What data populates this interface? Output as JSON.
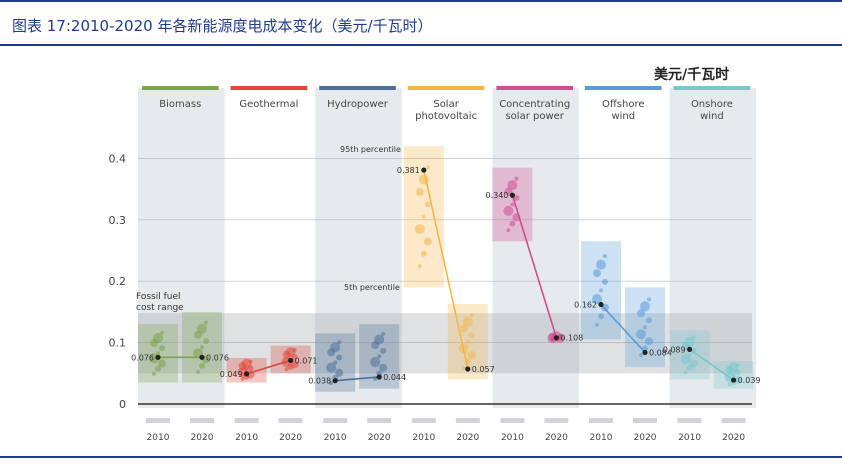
{
  "page_title": "图表 17:2010-2020 年各新能源度电成本变化（美元/千瓦时）",
  "chart_data": {
    "type": "scatter",
    "unit_label": "美元/千瓦时",
    "ylim": [
      0,
      0.4
    ],
    "yticks": [
      "0",
      "0.1",
      "0.2",
      "0.3",
      "0.4"
    ],
    "ytick_values": [
      0,
      0.1,
      0.2,
      0.3,
      0.4
    ],
    "grid": true,
    "annotations": {
      "fossil_label": [
        "Fossil fuel",
        "cost range"
      ],
      "fossil_range": [
        0.05,
        0.148
      ],
      "p95": "95th percentile",
      "p5": "5th percentile"
    },
    "categories": [
      {
        "name": [
          "Biomass"
        ],
        "color": "#7ba34c",
        "y2010": 0.076,
        "y2020": 0.076,
        "label2010": "0.076",
        "label2020": "0.076",
        "box2010": [
          0.035,
          0.13
        ],
        "box2020": [
          0.035,
          0.15
        ]
      },
      {
        "name": [
          "Geothermal"
        ],
        "color": "#e0473a",
        "y2010": 0.049,
        "y2020": 0.071,
        "label2010": "0.049",
        "label2020": "0.071",
        "box2010": [
          0.035,
          0.075
        ],
        "box2020": [
          0.05,
          0.095
        ]
      },
      {
        "name": [
          "Hydropower"
        ],
        "color": "#4d6f99",
        "y2010": 0.038,
        "y2020": 0.044,
        "label2010": "0.038",
        "label2020": "0.044",
        "box2010": [
          0.02,
          0.115
        ],
        "box2020": [
          0.025,
          0.13
        ]
      },
      {
        "name": [
          "Solar",
          "photovoltaic"
        ],
        "color": "#f3b64b",
        "y2010": 0.381,
        "y2020": 0.057,
        "label2010": "0.381",
        "label2020": "0.057",
        "box2010": [
          0.19,
          0.42
        ],
        "box2020": [
          0.04,
          0.163
        ]
      },
      {
        "name": [
          "Concentrating",
          "solar power"
        ],
        "color": "#cf4c8e",
        "y2010": 0.34,
        "y2020": 0.108,
        "label2010": "0.340",
        "label2020": "0.108",
        "box2010": [
          0.265,
          0.385
        ],
        "box2020": null
      },
      {
        "name": [
          "Offshore",
          "wind"
        ],
        "color": "#5a9bd8",
        "y2010": 0.162,
        "y2020": 0.084,
        "label2010": "0.162",
        "label2020": "0.084",
        "box2010": [
          0.105,
          0.265
        ],
        "box2020": [
          0.06,
          0.19
        ]
      },
      {
        "name": [
          "Onshore",
          "wind"
        ],
        "color": "#79c6cd",
        "y2010": 0.089,
        "y2020": 0.039,
        "label2010": "0.089",
        "label2020": "0.039",
        "box2010": [
          0.04,
          0.12
        ],
        "box2020": [
          0.025,
          0.07
        ]
      }
    ],
    "years": [
      "2010",
      "2020"
    ]
  }
}
